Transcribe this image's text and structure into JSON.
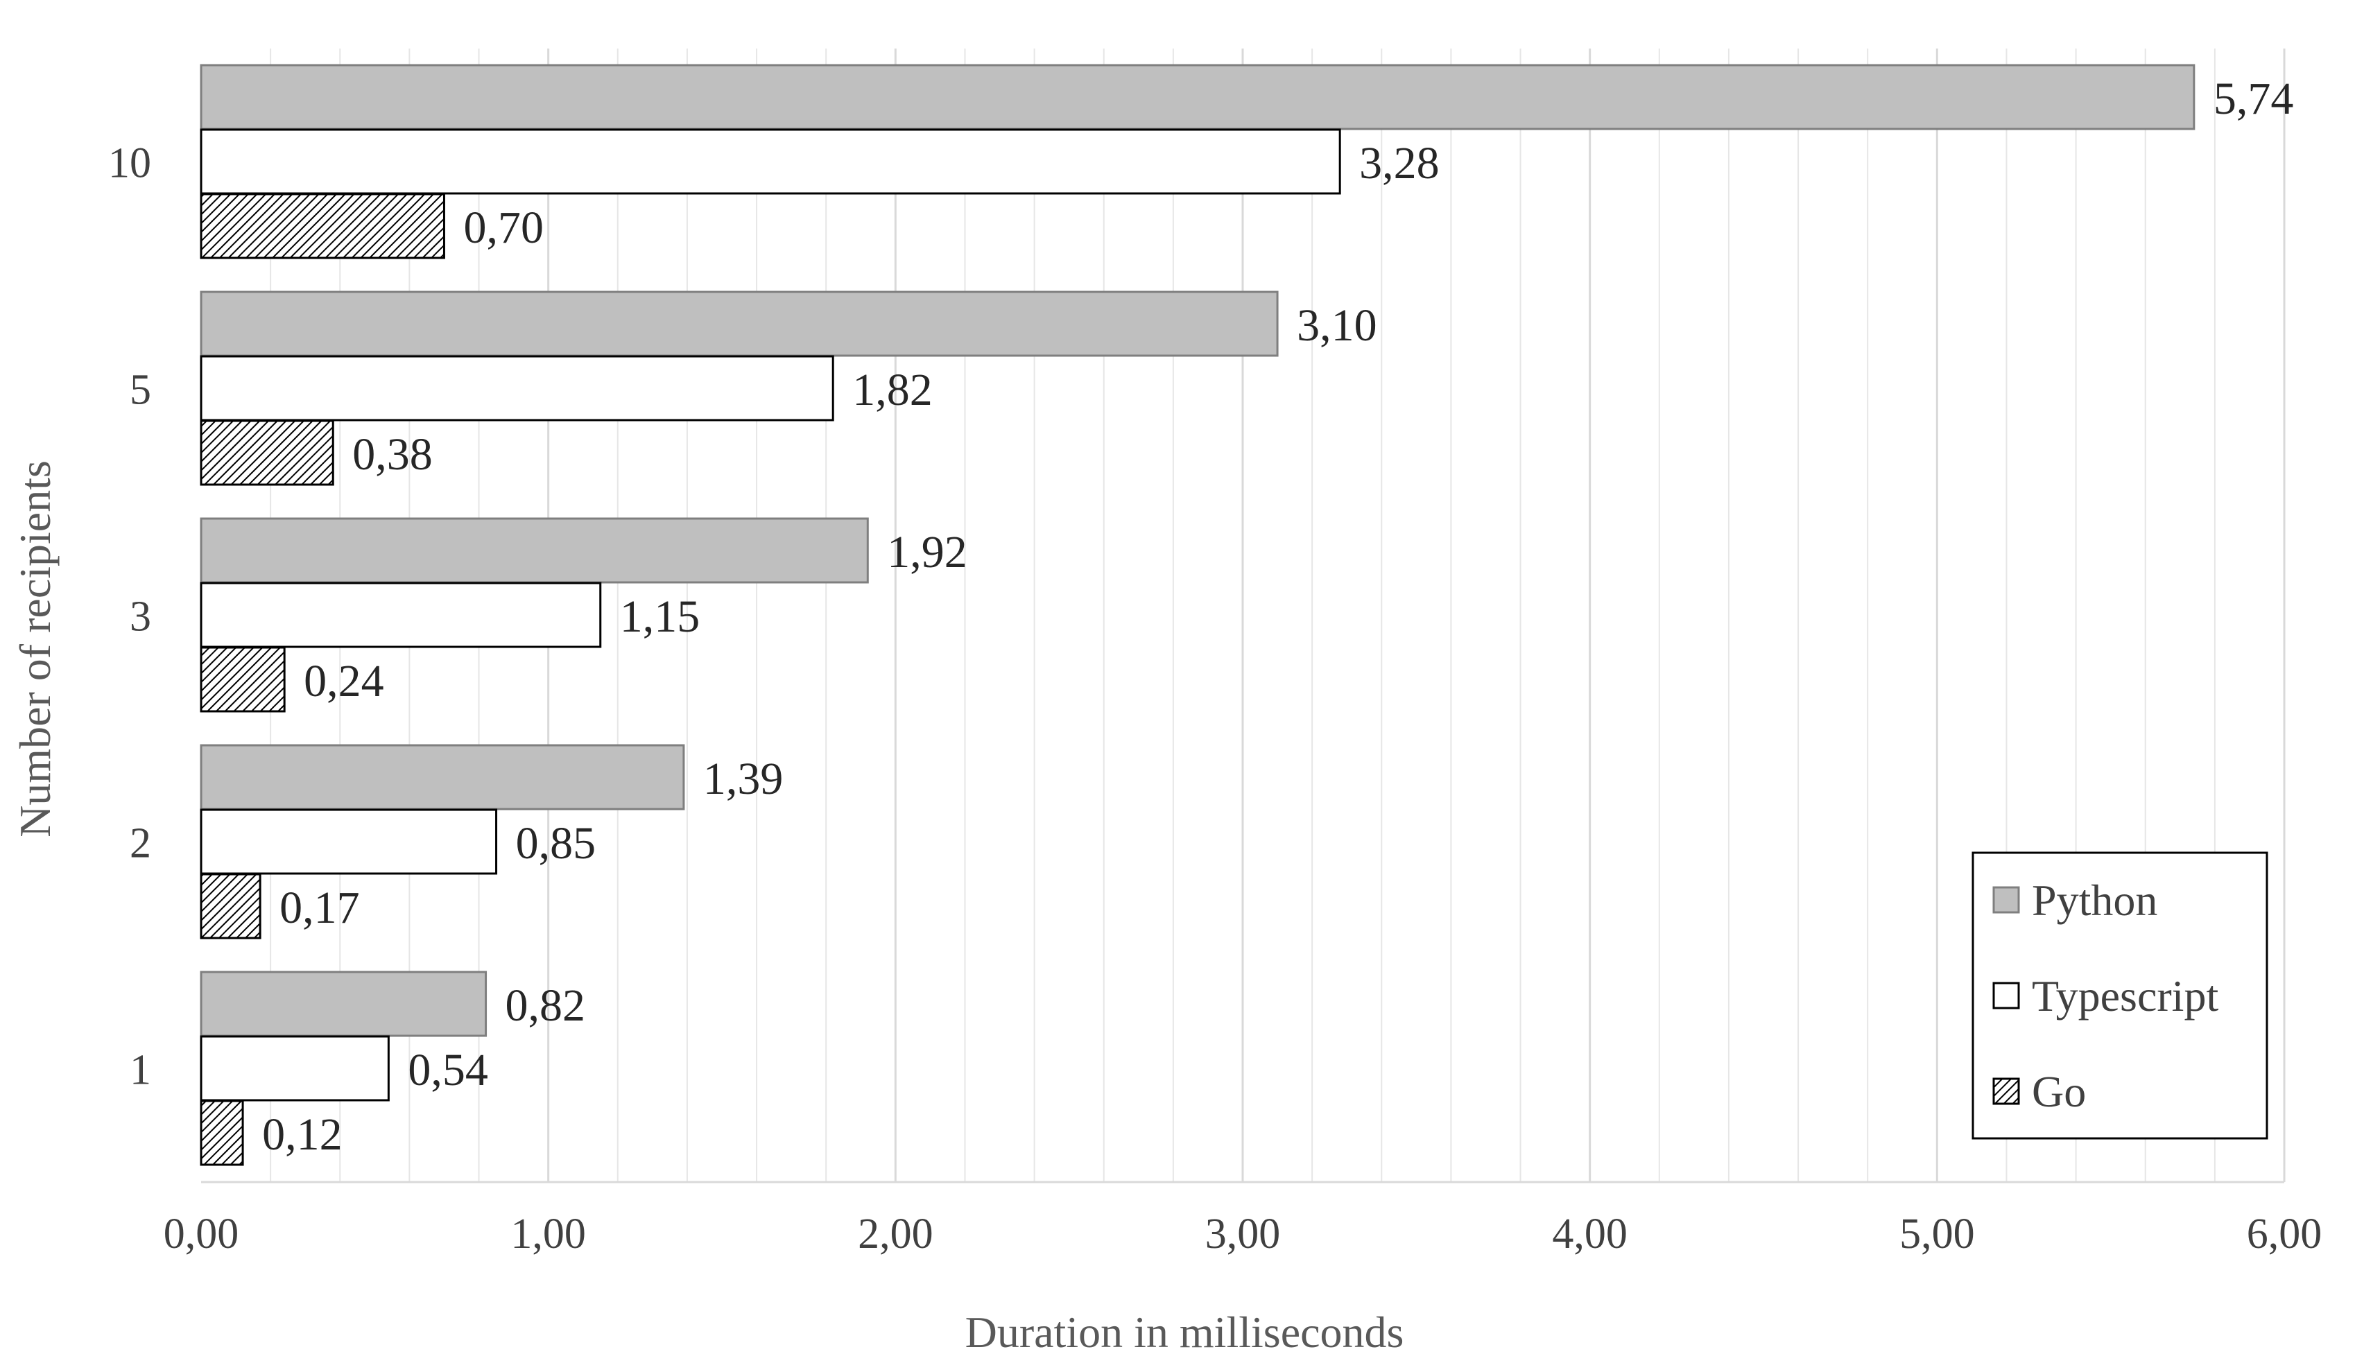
{
  "chart_data": {
    "type": "bar",
    "orientation": "horizontal",
    "categories": [
      "10",
      "5",
      "3",
      "2",
      "1"
    ],
    "series": [
      {
        "name": "Python",
        "values": [
          5.74,
          3.1,
          1.92,
          1.39,
          0.82
        ],
        "labels": [
          "5,74",
          "3,10",
          "1,92",
          "1,39",
          "0,82"
        ],
        "fill": "#bfbfbf",
        "pattern": "solid"
      },
      {
        "name": "Typescript",
        "values": [
          3.28,
          1.82,
          1.15,
          0.85,
          0.54
        ],
        "labels": [
          "3,28",
          "1,82",
          "1,15",
          "0,85",
          "0,54"
        ],
        "fill": "#ffffff",
        "pattern": "solid"
      },
      {
        "name": "Go",
        "values": [
          0.7,
          0.38,
          0.24,
          0.17,
          0.12
        ],
        "labels": [
          "0,70",
          "0,38",
          "0,24",
          "0,17",
          "0,12"
        ],
        "fill": "#ffffff",
        "pattern": "hatch"
      }
    ],
    "xlabel": "Duration in milliseconds",
    "ylabel": "Number of recipients",
    "xlim": [
      0,
      6
    ],
    "x_ticks": [
      0,
      1,
      2,
      3,
      4,
      5,
      6
    ],
    "x_tick_labels": [
      "0,00",
      "1,00",
      "2,00",
      "3,00",
      "4,00",
      "5,00",
      "6,00"
    ],
    "minor_gridlines_per_major": 5,
    "grid": true,
    "legend_position": "bottom-right",
    "colors": {
      "python": "#bfbfbf",
      "typescript": "#ffffff",
      "go_hatch": "#000000",
      "grid": "#e6e6e6",
      "bar_border": "#000000"
    }
  }
}
